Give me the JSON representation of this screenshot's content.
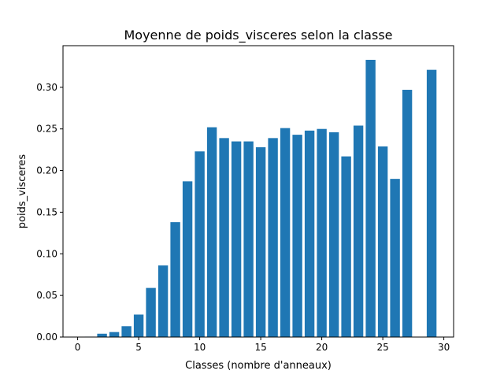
{
  "chart_data": {
    "type": "bar",
    "title": "Moyenne de poids_visceres selon la classe",
    "xlabel": "Classes (nombre d'anneaux)",
    "ylabel": "poids_visceres",
    "x": [
      1,
      2,
      3,
      4,
      5,
      6,
      7,
      8,
      9,
      10,
      11,
      12,
      13,
      14,
      15,
      16,
      17,
      18,
      19,
      20,
      21,
      22,
      23,
      24,
      25,
      26,
      27,
      29
    ],
    "values": [
      0.0005,
      0.004,
      0.006,
      0.013,
      0.027,
      0.059,
      0.086,
      0.138,
      0.187,
      0.223,
      0.252,
      0.239,
      0.235,
      0.235,
      0.228,
      0.239,
      0.251,
      0.243,
      0.248,
      0.25,
      0.246,
      0.217,
      0.254,
      0.333,
      0.229,
      0.19,
      0.297,
      0.321
    ],
    "xlim": [
      -1.2,
      30.8
    ],
    "ylim": [
      0,
      0.35
    ],
    "xticks": [
      0,
      5,
      10,
      15,
      20,
      25,
      30
    ],
    "xtick_labels": [
      "0",
      "5",
      "10",
      "15",
      "20",
      "25",
      "30"
    ],
    "yticks": [
      0.0,
      0.05,
      0.1,
      0.15,
      0.2,
      0.25,
      0.3
    ],
    "ytick_labels": [
      "0.00",
      "0.05",
      "0.10",
      "0.15",
      "0.20",
      "0.25",
      "0.30"
    ],
    "bar_color": "#1f77b4",
    "grid": false,
    "legend": "none"
  }
}
